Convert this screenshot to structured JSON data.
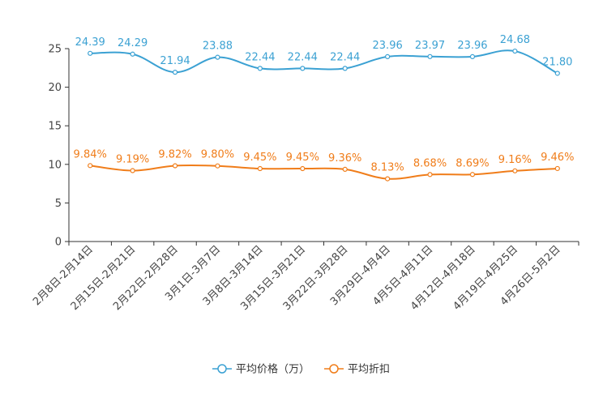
{
  "chart_data": {
    "type": "line",
    "title": "",
    "xlabel": "",
    "ylabel": "",
    "ylim": [
      0,
      25
    ],
    "yticks": [
      0,
      5,
      10,
      15,
      20,
      25
    ],
    "categories": [
      "2月8日-2月14日",
      "2月15日-2月21日",
      "2月22日-2月28日",
      "3月1日-3月7日",
      "3月8日-3月14日",
      "3月15日-3月21日",
      "3月22日-3月28日",
      "3月29日-4月4日",
      "4月5日-4月11日",
      "4月12日-4月18日",
      "4月19日-4月25日",
      "4月26日-5月2日"
    ],
    "series": [
      {
        "name": "平均价格（万）",
        "color": "#3ba1d3",
        "values": [
          24.39,
          24.29,
          21.94,
          23.88,
          22.44,
          22.44,
          22.44,
          23.96,
          23.97,
          23.96,
          24.68,
          21.8
        ],
        "labels": [
          "24.39",
          "24.29",
          "21.94",
          "23.88",
          "22.44",
          "22.44",
          "22.44",
          "23.96",
          "23.97",
          "23.96",
          "24.68",
          "21.80"
        ]
      },
      {
        "name": "平均折扣",
        "color": "#f07d1a",
        "values": [
          9.84,
          9.19,
          9.82,
          9.8,
          9.45,
          9.45,
          9.36,
          8.13,
          8.68,
          8.69,
          9.16,
          9.46
        ],
        "labels": [
          "9.84%",
          "9.19%",
          "9.82%",
          "9.80%",
          "9.45%",
          "9.45%",
          "9.36%",
          "8.13%",
          "8.68%",
          "8.69%",
          "9.16%",
          "9.46%"
        ]
      }
    ],
    "legend_position": "bottom-center",
    "grid": false
  }
}
